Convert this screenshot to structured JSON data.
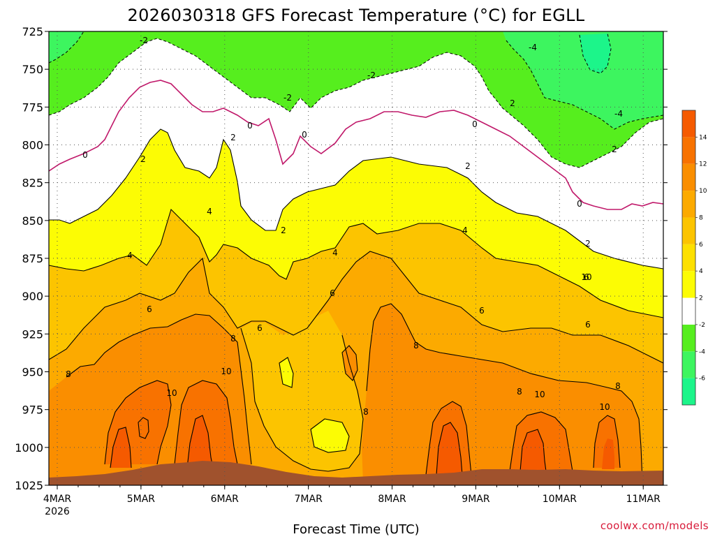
{
  "chart_data": {
    "type": "heatmap",
    "title": "2026030318 GFS Forecast Temperature (°C) for EGLL",
    "xlabel": "Forecast Time (UTC)",
    "ylabel": "",
    "credit": "coolwx.com/models",
    "y_axis": {
      "units": "hPa",
      "reversed": true,
      "range": [
        725,
        1025
      ],
      "ticks": [
        "725",
        "750",
        "775",
        "800",
        "825",
        "850",
        "875",
        "900",
        "925",
        "950",
        "975",
        "1000",
        "1025"
      ]
    },
    "x_axis": {
      "ticks": [
        {
          "label": "4MAR",
          "sublabel": "2026",
          "day": 0
        },
        {
          "label": "5MAR",
          "day": 1
        },
        {
          "label": "6MAR",
          "day": 2
        },
        {
          "label": "7MAR",
          "day": 3
        },
        {
          "label": "8MAR",
          "day": 4
        },
        {
          "label": "9MAR",
          "day": 5
        },
        {
          "label": "10MAR",
          "day": 6
        },
        {
          "label": "11MAR",
          "day": 7
        }
      ],
      "range_days": [
        -0.1,
        7.24
      ]
    },
    "colorbar": {
      "levels": [
        -8,
        -6,
        -4,
        -2,
        2,
        4,
        6,
        8,
        10,
        12,
        14,
        16
      ],
      "colors": [
        "#1cf58a",
        "#3df55f",
        "#56ee1e",
        "#ffffff",
        "#fcfc04",
        "#fde000",
        "#fcc400",
        "#fcaa00",
        "#fa8e00",
        "#f87200",
        "#f55a00"
      ],
      "tick_labels": [
        "-6",
        "-4",
        "-2",
        "2",
        "4",
        "6",
        "8",
        "10",
        "12",
        "14"
      ]
    },
    "contour_labels": [
      "-2",
      "-2",
      "-2",
      "-4",
      "-4",
      "2",
      "2",
      "0",
      "0",
      "0",
      "0",
      "0",
      "2",
      "2",
      "2",
      "2",
      "2",
      "4",
      "4",
      "4",
      "4",
      "6",
      "6",
      "6",
      "6",
      "6",
      "6",
      "8",
      "8",
      "8",
      "8",
      "8",
      "8",
      "10",
      "10",
      "10",
      "10",
      "10"
    ],
    "terrain": {
      "color": "#a0522d",
      "surface_pressure_hPa": "~1015-1020"
    }
  }
}
